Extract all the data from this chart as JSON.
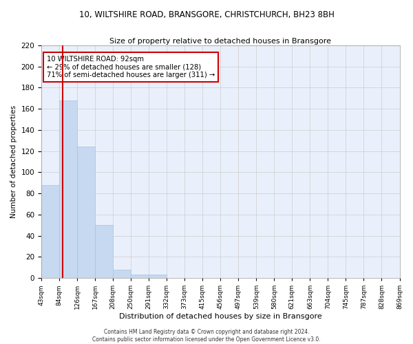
{
  "title1": "10, WILTSHIRE ROAD, BRANSGORE, CHRISTCHURCH, BH23 8BH",
  "title2": "Size of property relative to detached houses in Bransgore",
  "xlabel": "Distribution of detached houses by size in Bransgore",
  "ylabel": "Number of detached properties",
  "bin_labels": [
    "43sqm",
    "84sqm",
    "126sqm",
    "167sqm",
    "208sqm",
    "250sqm",
    "291sqm",
    "332sqm",
    "373sqm",
    "415sqm",
    "456sqm",
    "497sqm",
    "539sqm",
    "580sqm",
    "621sqm",
    "663sqm",
    "704sqm",
    "745sqm",
    "787sqm",
    "828sqm",
    "869sqm"
  ],
  "bar_heights": [
    88,
    168,
    124,
    50,
    8,
    3,
    3,
    0,
    0,
    0,
    0,
    0,
    0,
    0,
    0,
    0,
    0,
    0,
    0,
    0
  ],
  "bar_color": "#c6d9f0",
  "bar_edge_color": "#aac4e0",
  "grid_color": "#cccccc",
  "bg_color": "#eaf0fb",
  "red_line_x": 0.69,
  "annotation_text": "10 WILTSHIRE ROAD: 92sqm\n← 29% of detached houses are smaller (128)\n71% of semi-detached houses are larger (311) →",
  "annotation_box_color": "#ffffff",
  "annotation_box_edge": "#cc0000",
  "ylim": [
    0,
    220
  ],
  "yticks": [
    0,
    20,
    40,
    60,
    80,
    100,
    120,
    140,
    160,
    180,
    200,
    220
  ],
  "footer1": "Contains HM Land Registry data © Crown copyright and database right 2024.",
  "footer2": "Contains public sector information licensed under the Open Government Licence v3.0."
}
